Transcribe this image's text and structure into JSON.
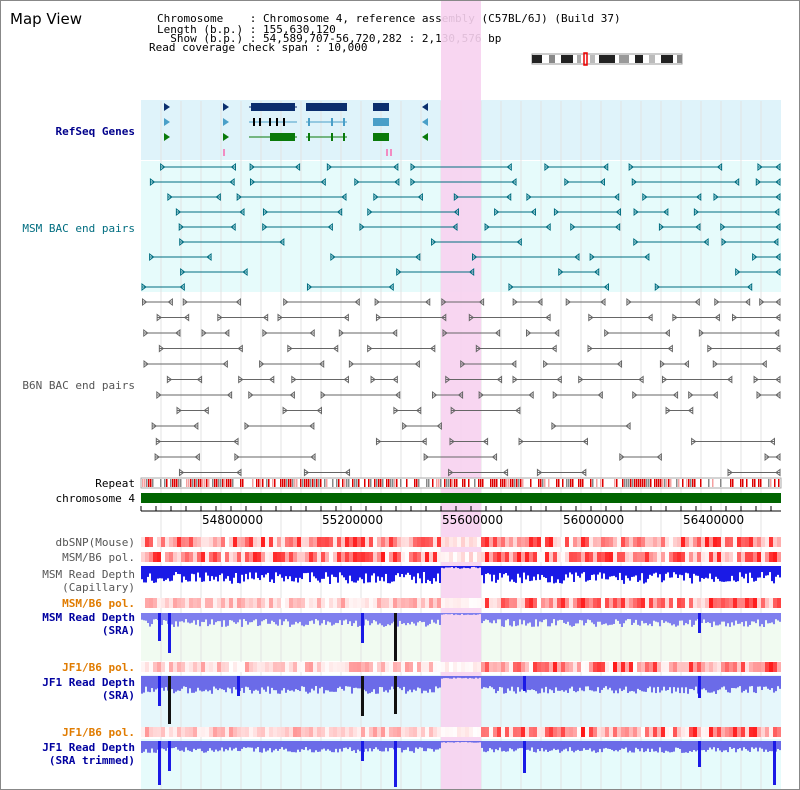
{
  "header": {
    "title": "Map View",
    "info_lines": [
      "Chromosome    : Chromosome 4, reference assembly (C57BL/6J) (Build 37)",
      "Length (b.p.) : 155,630,120",
      "  Show (b.p.) : 54,589,707-56,720,282 : 2,130,576 bp",
      "Read coverage check span : 10,000"
    ]
  },
  "tracks": {
    "refseq_genes": "RefSeq Genes",
    "msm_bac": "MSM BAC end pairs",
    "b6n_bac": "B6N BAC end pairs",
    "repeat": "Repeat",
    "chromosome": "chromosome 4",
    "dbsnp": "dbSNP(Mouse)",
    "msm_b6_pol_1": "MSM/B6 pol.",
    "msm_read_depth_cap_1": "MSM Read Depth",
    "msm_read_depth_cap_2": "(Capillary)",
    "msm_b6_pol_2": "MSM/B6 pol.",
    "msm_read_depth_sra_1": "MSM Read Depth",
    "msm_read_depth_sra_2": "(SRA)",
    "jf1_b6_pol_1": "JF1/B6 pol.",
    "jf1_read_depth_sra_1": "JF1 Read Depth",
    "jf1_read_depth_sra_2": "(SRA)",
    "jf1_b6_pol_2": "JF1/B6 pol.",
    "jf1_read_depth_trim_1": "JF1 Read Depth",
    "jf1_read_depth_trim_2": "(SRA trimmed)"
  },
  "axis": {
    "ticks": [
      "54800000",
      "55200000",
      "55600000",
      "56000000",
      "56400000"
    ]
  },
  "colors": {
    "gene_navy": "#0b2e6e",
    "gene_teal": "#4a9fc8",
    "gene_green": "#0a7a0a",
    "bac_teal": "#006d80",
    "bac_gray": "#666666",
    "highlight": "#f7d2ef",
    "chromosome_bar": "#006400",
    "depth_blue": "#1a1ae6",
    "depth_light": "#7f7fee"
  }
}
